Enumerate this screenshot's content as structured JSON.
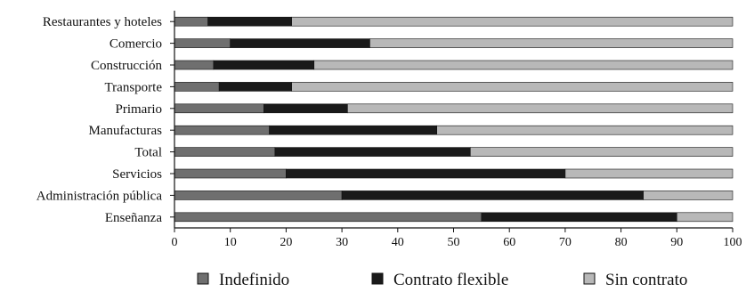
{
  "chart_data": {
    "type": "bar",
    "orientation": "horizontal",
    "stacked": true,
    "categories": [
      "Restaurantes y hoteles",
      "Comercio",
      "Construcción",
      "Transporte",
      "Primario",
      "Manufacturas",
      "Total",
      "Servicios",
      "Administración pública",
      "Enseñanza"
    ],
    "series": [
      {
        "name": "Indefinido",
        "color": "#6f6f6f",
        "values": [
          6,
          10,
          7,
          8,
          16,
          17,
          18,
          20,
          30,
          55
        ]
      },
      {
        "name": "Contrato flexible",
        "color": "#1a1a1a",
        "values": [
          15,
          25,
          18,
          13,
          15,
          30,
          35,
          50,
          54,
          35
        ]
      },
      {
        "name": "Sin contrato",
        "color": "#b8b8b8",
        "values": [
          79,
          65,
          75,
          79,
          69,
          53,
          47,
          30,
          16,
          10
        ]
      }
    ],
    "xlim": [
      0,
      100
    ],
    "xticks": [
      "0",
      "10",
      "20",
      "30",
      "40",
      "50",
      "60",
      "70",
      "80",
      "90",
      "100"
    ],
    "grid": false,
    "legend_position": "bottom"
  }
}
